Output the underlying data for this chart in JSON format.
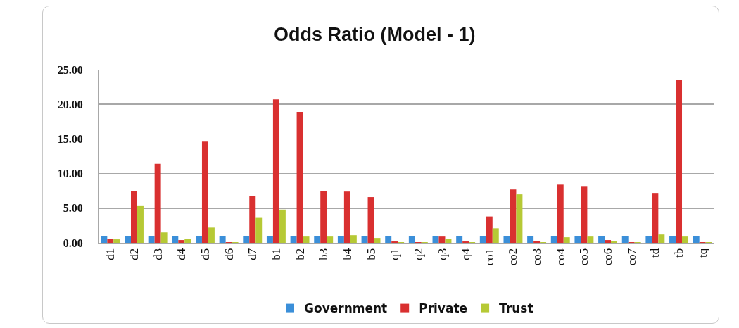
{
  "chart_data": {
    "type": "bar",
    "title": "Odds Ratio (Model - 1)",
    "categories": [
      "d1",
      "d2",
      "d3",
      "d4",
      "d5",
      "d6",
      "d7",
      "b1",
      "b2",
      "b3",
      "b4",
      "b5",
      "q1",
      "q2",
      "q3",
      "q4",
      "co1",
      "co2",
      "co3",
      "co4",
      "co5",
      "co6",
      "co7",
      "td",
      "tb",
      "tq"
    ],
    "series": [
      {
        "name": "Government",
        "color": "#3b8fd9",
        "values": [
          1.0,
          1.0,
          1.0,
          1.0,
          1.0,
          1.0,
          1.0,
          1.0,
          1.0,
          1.0,
          1.0,
          1.0,
          1.0,
          1.0,
          1.0,
          1.0,
          1.0,
          1.0,
          1.0,
          1.0,
          1.0,
          1.0,
          1.0,
          1.0,
          1.0,
          1.0
        ]
      },
      {
        "name": "Private",
        "color": "#d93030",
        "values": [
          0.6,
          7.5,
          11.4,
          0.4,
          14.6,
          0.1,
          6.8,
          20.7,
          18.9,
          7.5,
          7.4,
          6.6,
          0.2,
          0.1,
          0.9,
          0.2,
          3.8,
          7.7,
          0.3,
          8.4,
          8.2,
          0.4,
          0.1,
          7.2,
          23.5,
          0.1
        ]
      },
      {
        "name": "Trust",
        "color": "#b6c935",
        "values": [
          0.5,
          5.4,
          1.5,
          0.6,
          2.2,
          0.1,
          3.6,
          4.8,
          0.9,
          0.9,
          1.1,
          0.7,
          0.1,
          0.1,
          0.6,
          0.1,
          2.1,
          7.0,
          0.1,
          0.8,
          0.9,
          0.2,
          0.1,
          1.2,
          0.9,
          0.1
        ]
      }
    ],
    "ylim": [
      0,
      25
    ],
    "yticks": [
      {
        "value": 0,
        "label": "0.00"
      },
      {
        "value": 5,
        "label": "5.00"
      },
      {
        "value": 10,
        "label": "10.00"
      },
      {
        "value": 15,
        "label": "15.00"
      },
      {
        "value": 20,
        "label": "20.00"
      },
      {
        "value": 25,
        "label": "25.00"
      }
    ],
    "grid": "y",
    "legend": "bottom"
  }
}
